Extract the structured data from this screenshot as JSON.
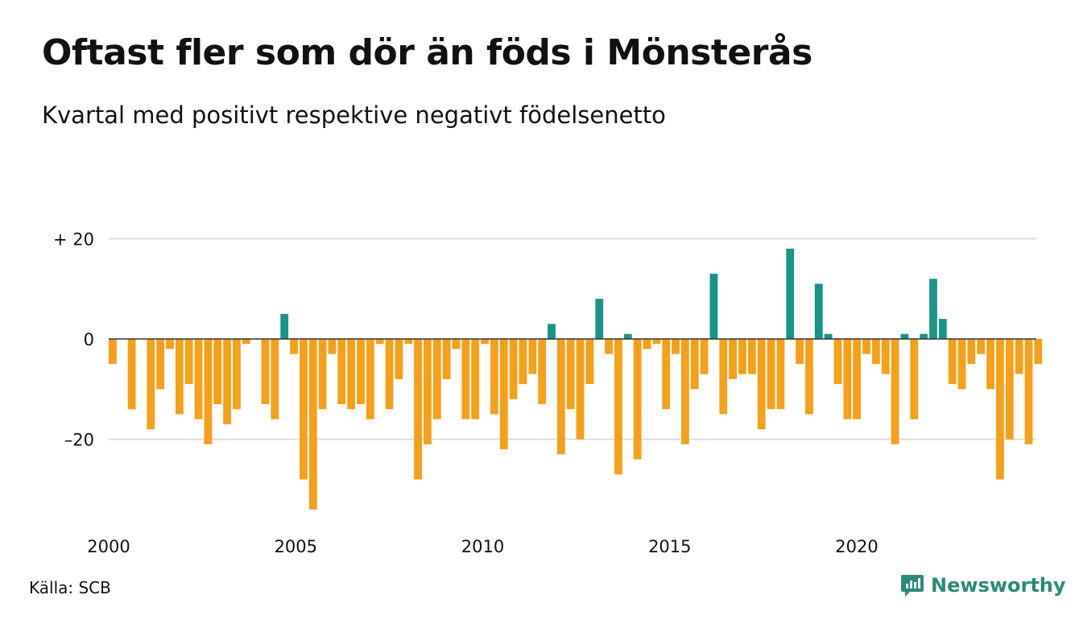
{
  "header": {
    "title": "Oftast fler som dör än föds i Mönsterås",
    "subtitle": "Kvartal med positivt respektive negativt födelsenetto"
  },
  "footer": {
    "source": "Källa: SCB",
    "brand": "Newsworthy"
  },
  "colors": {
    "positive": "#1a9486",
    "negative": "#f5a01a",
    "grid": "#dddddd",
    "zero_line": "#333333",
    "brand": "#2a8a7a"
  },
  "chart_data": {
    "type": "bar",
    "ylim": [
      -35,
      21
    ],
    "y_ticks": [
      {
        "value": 20,
        "label": "+ 20"
      },
      {
        "value": 0,
        "label": "0"
      },
      {
        "value": -20,
        "label": "–20"
      }
    ],
    "x_ticks": [
      "2000",
      "2005",
      "2010",
      "2015",
      "2020"
    ],
    "first_year": 2000,
    "last_year": 2024,
    "grid": "horizontal",
    "legend": "none",
    "values": [
      -5,
      0,
      -14,
      0,
      -18,
      -10,
      -2,
      -15,
      -9,
      -16,
      -21,
      -13,
      -17,
      -14,
      -1,
      0,
      -13,
      -16,
      5,
      -3,
      -28,
      -34,
      -14,
      -3,
      -13,
      -14,
      -13,
      -16,
      -1,
      -14,
      -8,
      -1,
      -28,
      -21,
      -16,
      -8,
      -2,
      -16,
      -16,
      -1,
      -15,
      -22,
      -12,
      -9,
      -7,
      -13,
      3,
      -23,
      -14,
      -20,
      -9,
      8,
      -3,
      -27,
      1,
      -24,
      -2,
      -1,
      -14,
      -3,
      -21,
      -10,
      -7,
      13,
      -15,
      -8,
      -7,
      -7,
      -18,
      -14,
      -14,
      18,
      -5,
      -15,
      11,
      1,
      -9,
      -16,
      -16,
      -3,
      -5,
      -7,
      -21,
      1,
      -16,
      1,
      12,
      4,
      -9,
      -10,
      -5,
      -3,
      -10,
      -28,
      -20,
      -7,
      -21,
      -5
    ]
  }
}
